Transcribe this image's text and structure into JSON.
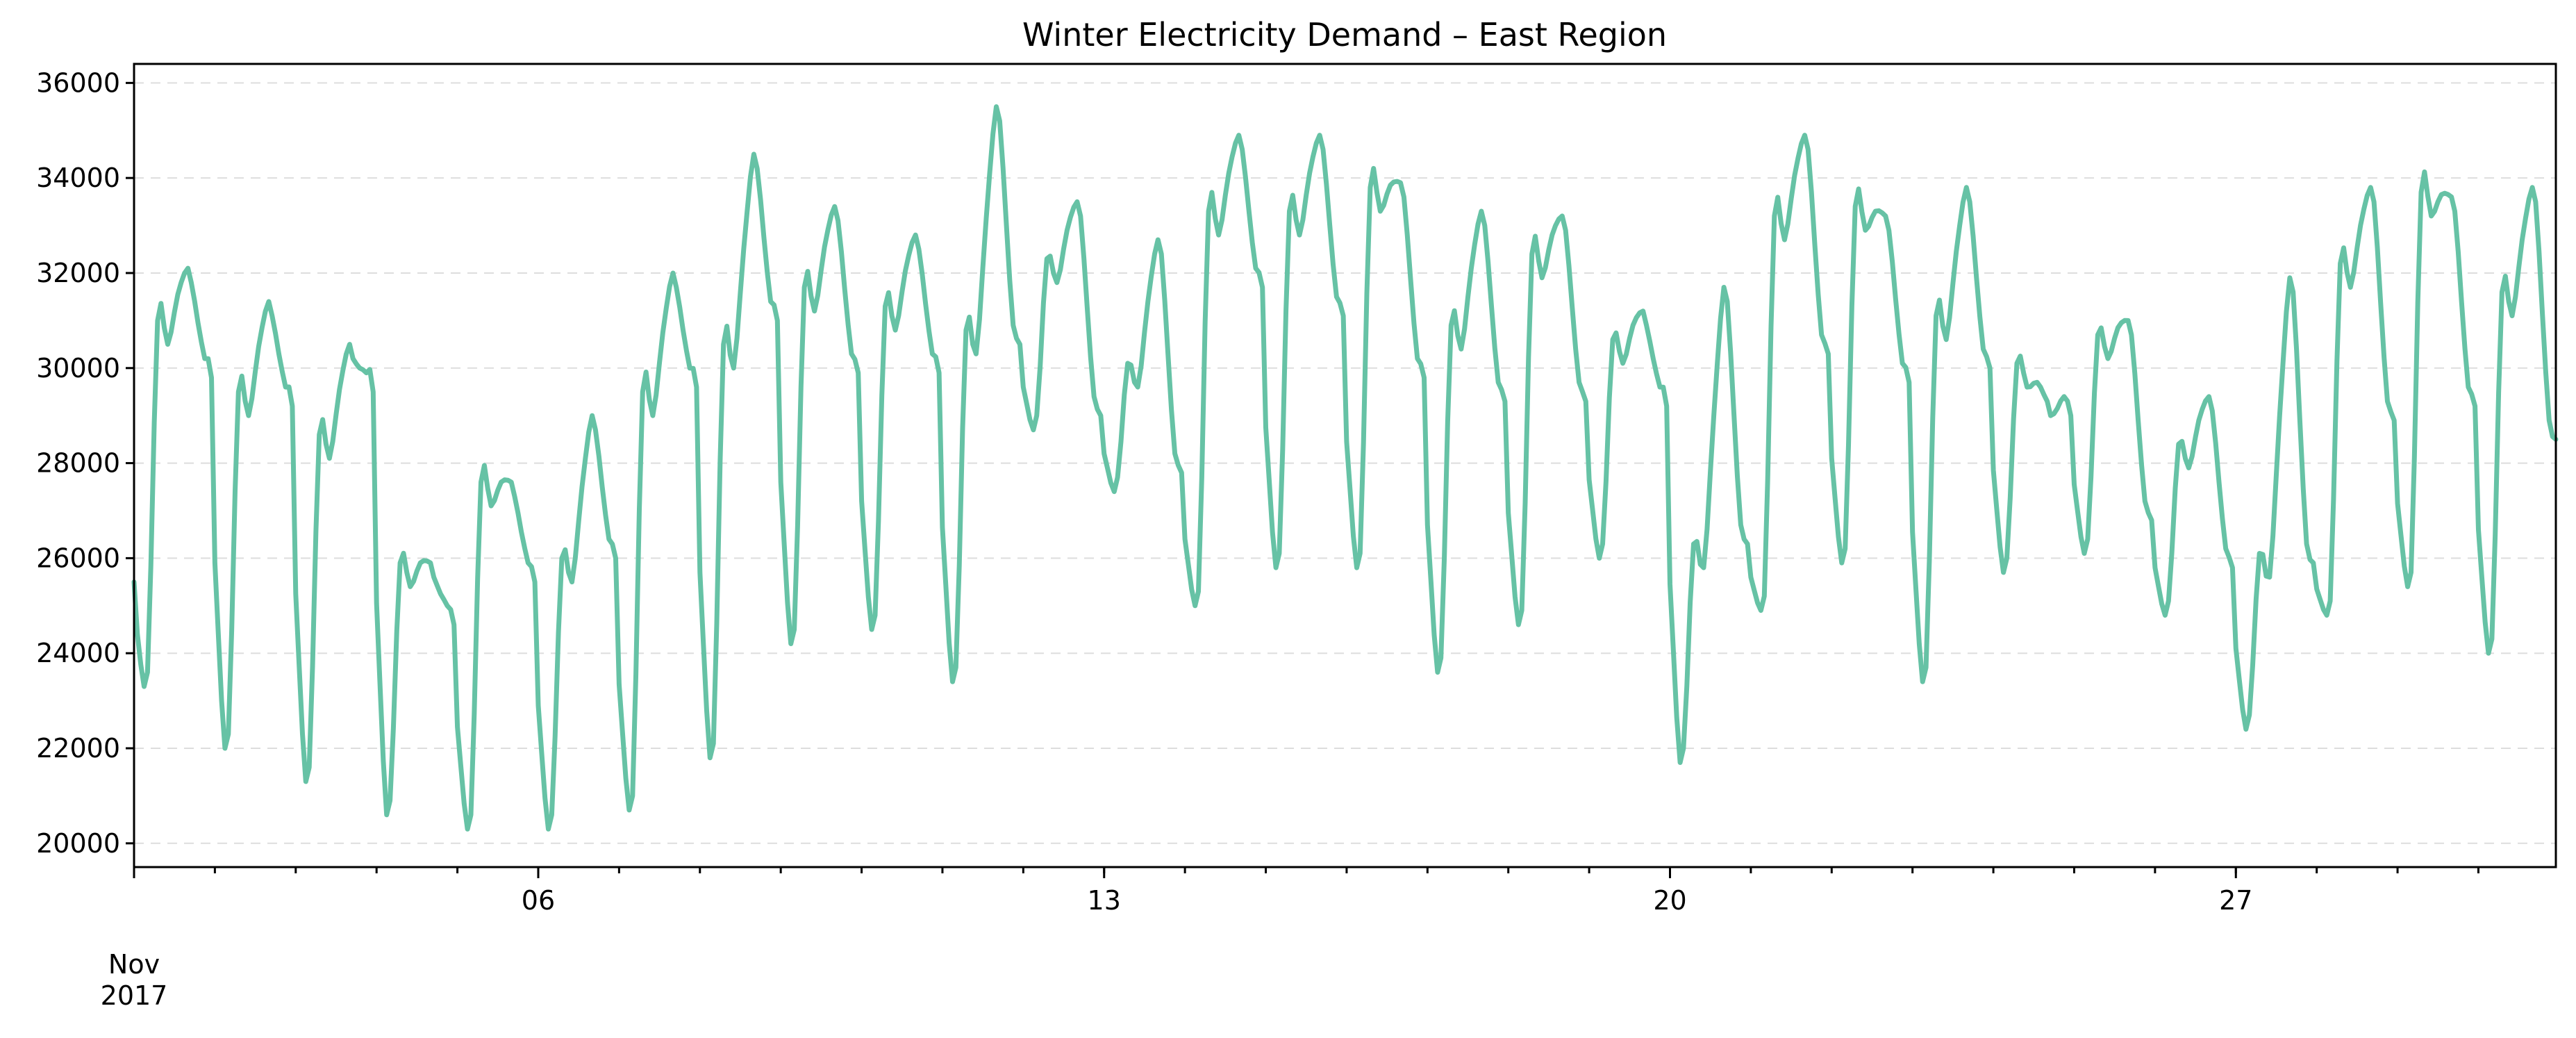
{
  "chart_data": {
    "type": "line",
    "title": "Winter Electricity Demand – East Region",
    "xlabel": "",
    "ylabel": "",
    "x_range": [
      "2017-11-01",
      "2017-11-30T23:00"
    ],
    "ylim": [
      19500,
      36400
    ],
    "y_ticks": [
      20000,
      22000,
      24000,
      26000,
      28000,
      30000,
      32000,
      34000,
      36000
    ],
    "x_major_ticks": [
      {
        "date": "2017-11-06",
        "label": "06"
      },
      {
        "date": "2017-11-13",
        "label": "13"
      },
      {
        "date": "2017-11-20",
        "label": "20"
      },
      {
        "date": "2017-11-27",
        "label": "27"
      }
    ],
    "x_month_label": {
      "date": "2017-11-01",
      "line1": "Nov",
      "line2": "2017"
    },
    "minor_ticks": "daily",
    "grid": {
      "x": false,
      "y": true
    },
    "legend": "none",
    "series": [
      {
        "color": "#66c2a5",
        "resolution": "hourly",
        "daily_profile": [
          {
            "day": "2017-11-01",
            "start": 25500,
            "min": 23300,
            "plat": 31000,
            "peak": 32100,
            "evening": 29800
          },
          {
            "day": "2017-11-02",
            "min": 22000,
            "plat": 29500,
            "peak": 31400,
            "evening": 29200
          },
          {
            "day": "2017-11-03",
            "min": 21300,
            "plat": 28600,
            "peak": 30500,
            "evening": 29500
          },
          {
            "day": "2017-11-04",
            "min": 20600,
            "plat": 25900,
            "peak": 25900,
            "evening": 24600
          },
          {
            "day": "2017-11-05",
            "min": 20300,
            "plat": 27600,
            "peak": 27600,
            "evening": 25500
          },
          {
            "day": "2017-11-06",
            "min": 20300,
            "plat": 26000,
            "peak": 29000,
            "evening": 26000
          },
          {
            "day": "2017-11-07",
            "min": 20700,
            "plat": 29500,
            "peak": 32000,
            "evening": 29600
          },
          {
            "day": "2017-11-08",
            "min": 21800,
            "plat": 30500,
            "peak": 34500,
            "evening": 31000
          },
          {
            "day": "2017-11-09",
            "min": 24200,
            "plat": 31700,
            "peak": 33400,
            "evening": 29900
          },
          {
            "day": "2017-11-10",
            "min": 24500,
            "plat": 31300,
            "peak": 32800,
            "evening": 29900
          },
          {
            "day": "2017-11-11",
            "min": 23400,
            "plat": 30800,
            "peak": 35500,
            "evening": 30500
          },
          {
            "day": "2017-11-12",
            "min": 28700,
            "plat": 32300,
            "peak": 33500,
            "evening": 29000
          },
          {
            "day": "2017-11-13",
            "min": 27400,
            "plat": 30100,
            "peak": 32700,
            "evening": 27800
          },
          {
            "day": "2017-11-14",
            "min": 25000,
            "plat": 33300,
            "peak": 34900,
            "evening": 31700
          },
          {
            "day": "2017-11-15",
            "min": 25800,
            "plat": 33300,
            "peak": 34900,
            "evening": 31100
          },
          {
            "day": "2017-11-16",
            "min": 25800,
            "plat": 33800,
            "peak": 33900,
            "evening": 29800
          },
          {
            "day": "2017-11-17",
            "min": 23600,
            "plat": 30900,
            "peak": 33300,
            "evening": 29300
          },
          {
            "day": "2017-11-18",
            "min": 24600,
            "plat": 32400,
            "peak": 33200,
            "evening": 29300
          },
          {
            "day": "2017-11-19",
            "min": 26000,
            "plat": 30600,
            "peak": 31200,
            "evening": 29200
          },
          {
            "day": "2017-11-20",
            "min": 21700,
            "plat": 26300,
            "peak": 31700,
            "evening": 26300
          },
          {
            "day": "2017-11-21",
            "min": 24900,
            "plat": 33200,
            "peak": 34900,
            "evening": 30300
          },
          {
            "day": "2017-11-22",
            "min": 25900,
            "plat": 33400,
            "peak": 33200,
            "evening": 29700
          },
          {
            "day": "2017-11-23",
            "min": 23400,
            "plat": 31100,
            "peak": 33800,
            "evening": 30000
          },
          {
            "day": "2017-11-24",
            "min": 25700,
            "plat": 30100,
            "peak": 29300,
            "evening": 29000
          },
          {
            "day": "2017-11-25",
            "min": 26100,
            "plat": 30700,
            "peak": 31000,
            "evening": 26800
          },
          {
            "day": "2017-11-26",
            "min": 24800,
            "plat": 28400,
            "peak": 29400,
            "evening": 25800
          },
          {
            "day": "2017-11-27",
            "min": 22400,
            "plat": 26100,
            "peak": 31900,
            "evening": 25900
          },
          {
            "day": "2017-11-28",
            "min": 24800,
            "plat": 32200,
            "peak": 33800,
            "evening": 28900
          },
          {
            "day": "2017-11-29",
            "min": 25400,
            "plat": 33700,
            "peak": 33600,
            "evening": 29200
          },
          {
            "day": "2017-11-30",
            "min": 24000,
            "plat": 31600,
            "peak": 33800,
            "evening": 28500
          }
        ]
      }
    ]
  }
}
